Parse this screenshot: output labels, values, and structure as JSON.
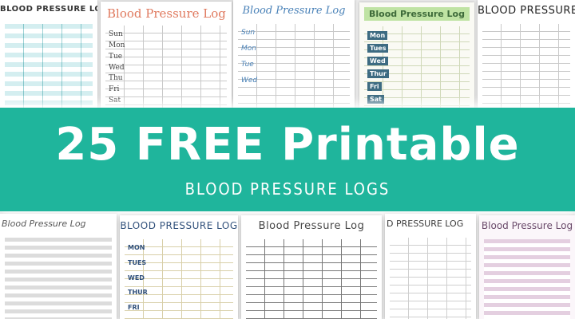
{
  "top_row": [
    {
      "title": "BLOOD PRESSURE LOG"
    },
    {
      "title": "Blood Pressure Log",
      "days": [
        "Sun",
        "Mon",
        "Tue",
        "Wed",
        "Thu",
        "Fri",
        "Sat"
      ]
    },
    {
      "title": "Blood Pressure Log",
      "days": [
        "Sun",
        "Mon",
        "Tue",
        "Wed"
      ]
    },
    {
      "title": "Blood Pressure Log",
      "days": [
        "Mon",
        "Tues",
        "Wed",
        "Thur",
        "Fri",
        "Sat"
      ]
    },
    {
      "title": "BLOOD PRESSURE LOG"
    }
  ],
  "banner": {
    "title": "25 FREE Printable",
    "subtitle": "BLOOD PRESSURE LOGS"
  },
  "bottom_row": [
    {
      "title": "Blood Pressure Log"
    },
    {
      "title": "BLOOD PRESSURE LOG",
      "days": [
        "MON",
        "TUES",
        "WED",
        "THUR",
        "FRI"
      ]
    },
    {
      "title": "Blood Pressure Log"
    },
    {
      "title": "D PRESSURE LOG"
    },
    {
      "title": "Blood Pressure Log"
    }
  ]
}
